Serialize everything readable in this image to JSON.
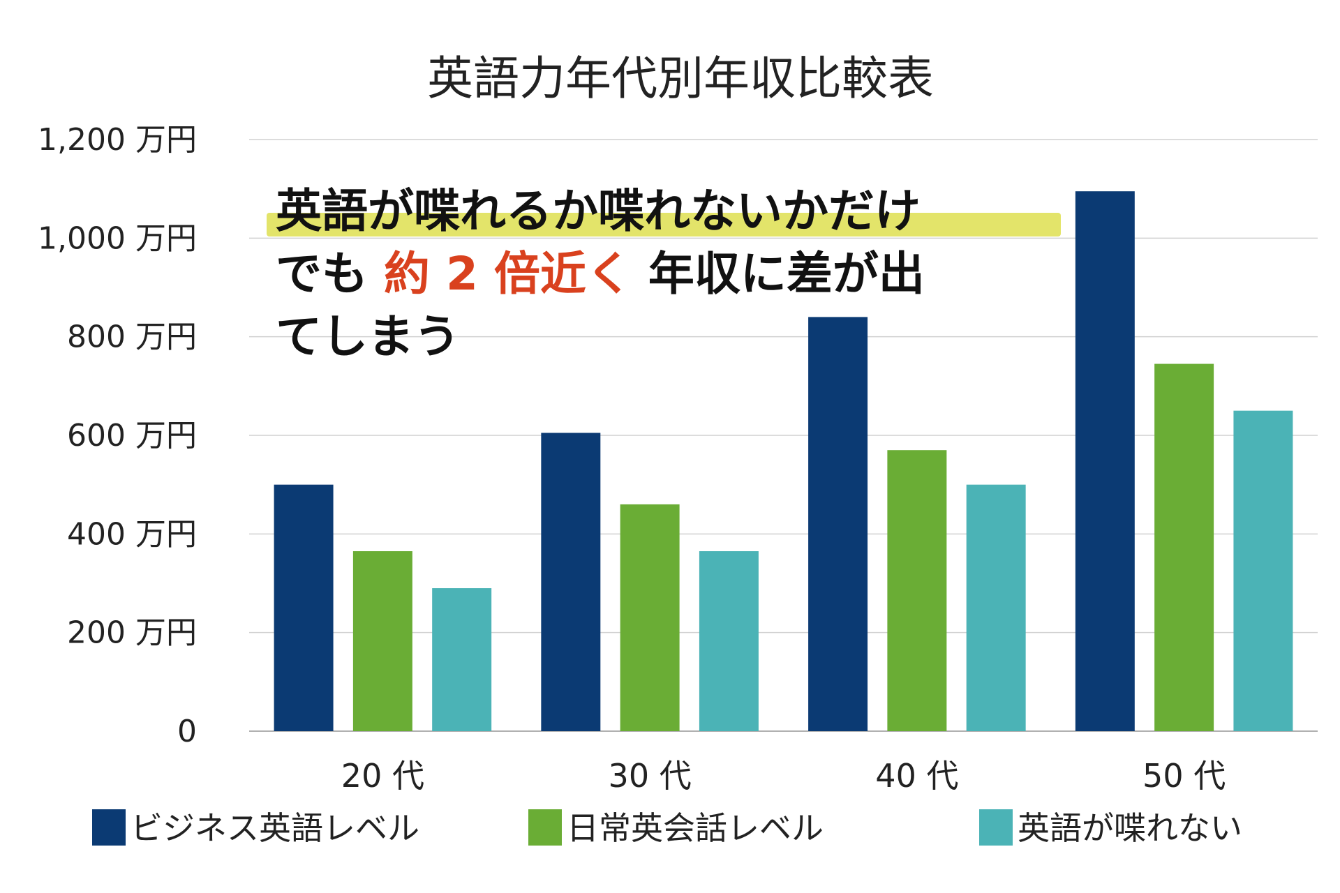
{
  "chart_data": {
    "type": "bar",
    "title": "英語力年代別年収比較表",
    "categories": [
      "20 代",
      "30 代",
      "40 代",
      "50 代"
    ],
    "series": [
      {
        "name": "ビジネス英語レベル",
        "color": "#0b3a73",
        "values": [
          500,
          605,
          840,
          1095
        ]
      },
      {
        "name": "日常英会話レベル",
        "color": "#6aad35",
        "values": [
          365,
          460,
          570,
          745
        ]
      },
      {
        "name": "英語が喋れない",
        "color": "#4bb3b6",
        "values": [
          290,
          365,
          500,
          650
        ]
      }
    ],
    "ylim": [
      0,
      1200
    ],
    "yticks": [
      {
        "value": 0,
        "label": "0"
      },
      {
        "value": 200,
        "label": "200 万円"
      },
      {
        "value": 400,
        "label": "400 万円"
      },
      {
        "value": 600,
        "label": "600 万円"
      },
      {
        "value": 800,
        "label": "800 万円"
      },
      {
        "value": 1000,
        "label": "1,000 万円"
      },
      {
        "value": 1200,
        "label": "1,200 万円"
      }
    ],
    "grid": true,
    "legend_position": "bottom",
    "annotation": {
      "line1": "英語が喋れるか喋れないかだけ",
      "line2_before": "でも",
      "line2_emphasis": "約 2 倍近く",
      "line2_after": "年収に差が出",
      "line3": "てしまう",
      "emphasis_color": "#d9411e",
      "highlight_color": "#e3e46a"
    }
  }
}
